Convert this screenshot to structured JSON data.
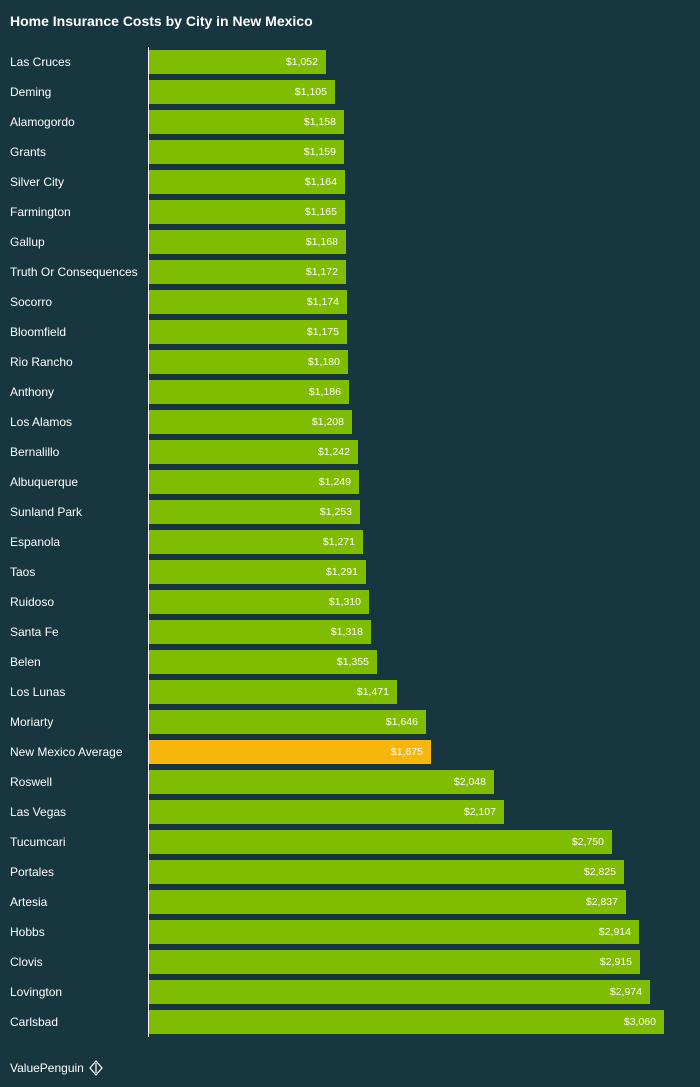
{
  "chart_data": {
    "type": "bar",
    "orientation": "horizontal",
    "title": "Home Insurance Costs by City in New Mexico",
    "xlabel": "",
    "ylabel": "",
    "xlim": [
      0,
      3060
    ],
    "categories": [
      "Las Cruces",
      "Deming",
      "Alamogordo",
      "Grants",
      "Silver City",
      "Farmington",
      "Gallup",
      "Truth Or Consequences",
      "Socorro",
      "Bloomfield",
      "Rio Rancho",
      "Anthony",
      "Los Alamos",
      "Bernalillo",
      "Albuquerque",
      "Sunland Park",
      "Espanola",
      "Taos",
      "Ruidoso",
      "Santa Fe",
      "Belen",
      "Los Lunas",
      "Moriarty",
      "New Mexico Average",
      "Roswell",
      "Las Vegas",
      "Tucumcari",
      "Portales",
      "Artesia",
      "Hobbs",
      "Clovis",
      "Lovington",
      "Carlsbad"
    ],
    "values": [
      1052,
      1105,
      1158,
      1159,
      1164,
      1165,
      1168,
      1172,
      1174,
      1175,
      1180,
      1186,
      1208,
      1242,
      1249,
      1253,
      1271,
      1291,
      1310,
      1318,
      1355,
      1471,
      1646,
      1675,
      2048,
      2107,
      2750,
      2825,
      2837,
      2914,
      2915,
      2974,
      3060
    ],
    "value_labels": [
      "$1,052",
      "$1,105",
      "$1,158",
      "$1,159",
      "$1,164",
      "$1,165",
      "$1,168",
      "$1,172",
      "$1,174",
      "$1,175",
      "$1,180",
      "$1,186",
      "$1,208",
      "$1,242",
      "$1,249",
      "$1,253",
      "$1,271",
      "$1,291",
      "$1,310",
      "$1,318",
      "$1,355",
      "$1,471",
      "$1,646",
      "$1,675",
      "$2,048",
      "$2,107",
      "$2,750",
      "$2,825",
      "$2,837",
      "$2,914",
      "$2,915",
      "$2,974",
      "$3,060"
    ],
    "highlight_category": "New Mexico Average"
  },
  "colors": {
    "background": "#17363f",
    "bar": "#80bd01",
    "highlight_bar": "#f8b50b",
    "text": "#ffffff"
  },
  "footer": {
    "brand": "ValuePenguin",
    "logo_icon": "penguin-logo-icon"
  }
}
